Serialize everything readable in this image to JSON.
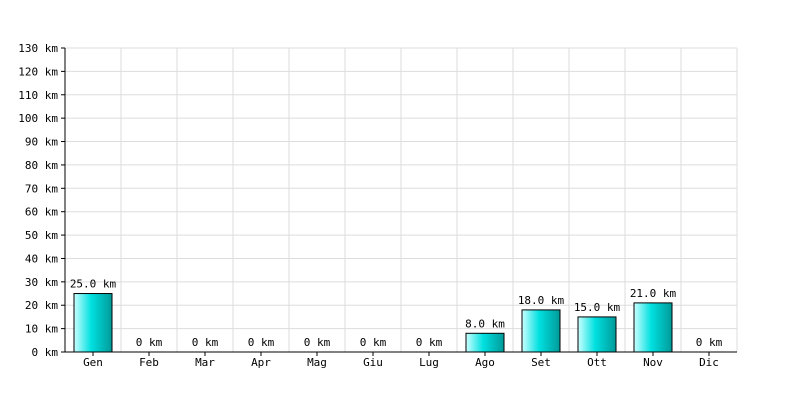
{
  "chart_data": {
    "type": "bar",
    "title": "",
    "xlabel": "",
    "ylabel": "",
    "unit": "km",
    "categories": [
      "Gen",
      "Feb",
      "Mar",
      "Apr",
      "Mag",
      "Giu",
      "Lug",
      "Ago",
      "Set",
      "Ott",
      "Nov",
      "Dic"
    ],
    "values": [
      25.0,
      0,
      0,
      0,
      0,
      0,
      0,
      8.0,
      18.0,
      15.0,
      21.0,
      0
    ],
    "value_labels": [
      "25.0 km",
      "0 km",
      "0 km",
      "0 km",
      "0 km",
      "0 km",
      "0 km",
      "8.0 km",
      "18.0 km",
      "15.0 km",
      "21.0 km",
      "0 km"
    ],
    "ylim": [
      0,
      130
    ],
    "yticks": [
      0,
      10,
      20,
      30,
      40,
      50,
      60,
      70,
      80,
      90,
      100,
      110,
      120,
      130
    ],
    "ytick_labels": [
      "0 km",
      "10 km",
      "20 km",
      "30 km",
      "40 km",
      "50 km",
      "60 km",
      "70 km",
      "80 km",
      "90 km",
      "100 km",
      "110 km",
      "120 km",
      "130 km"
    ],
    "grid": true,
    "legend": "none",
    "colors": {
      "bar_light": "#ccffff",
      "bar_mid": "#00e0e0",
      "bar_dark": "#009999",
      "bar_stroke": "#000000",
      "grid": "#dddddd",
      "axis": "#000000",
      "tick_label": "#000033"
    }
  }
}
